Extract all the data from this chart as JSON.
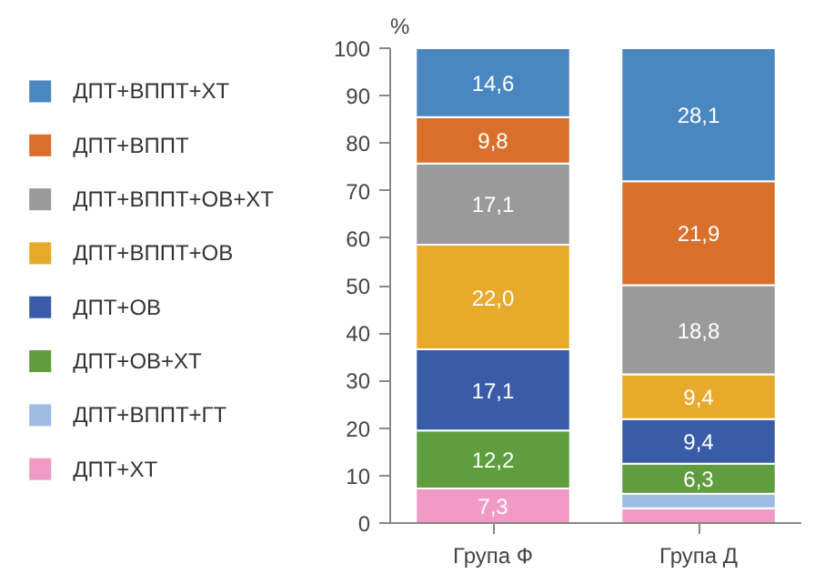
{
  "chart_data": {
    "type": "bar",
    "stacked": true,
    "ylabel": "%",
    "categories": [
      "Група Ф",
      "Група Д"
    ],
    "ylim": [
      0,
      100
    ],
    "yticks": [
      0,
      10,
      20,
      30,
      40,
      50,
      60,
      70,
      80,
      90,
      100
    ],
    "grid": false,
    "legend": "left",
    "series": [
      {
        "name": "ДПТ+ХТ",
        "color": "#f29ac6",
        "values": [
          7.3,
          3.1
        ],
        "value_labels": [
          "7,3",
          null
        ]
      },
      {
        "name": "ДПТ+ВППТ+ГТ",
        "color": "#9dbbe3",
        "values": [
          0,
          3.1
        ],
        "value_labels": [
          null,
          null
        ]
      },
      {
        "name": "ДПТ+ОВ+ХТ",
        "color": "#5f9d3f",
        "values": [
          12.2,
          6.3
        ],
        "value_labels": [
          "12,2",
          "6,3"
        ]
      },
      {
        "name": "ДПТ+ОВ",
        "color": "#3a5ca8",
        "values": [
          17.1,
          9.4
        ],
        "value_labels": [
          "17,1",
          "9,4"
        ]
      },
      {
        "name": "ДПТ+ВППТ+ОВ",
        "color": "#e7aa2a",
        "values": [
          22.0,
          9.4
        ],
        "value_labels": [
          "22,0",
          "9,4"
        ]
      },
      {
        "name": "ДПТ+ВППТ+ОВ+ХТ",
        "color": "#9a9a9a",
        "values": [
          17.1,
          18.8
        ],
        "value_labels": [
          "17,1",
          "18,8"
        ]
      },
      {
        "name": "ДПТ+ВППТ",
        "color": "#d8702c",
        "values": [
          9.8,
          21.9
        ],
        "value_labels": [
          "9,8",
          "21,9"
        ]
      },
      {
        "name": "ДПТ+ВППТ+ХТ",
        "color": "#4a87c0",
        "values": [
          14.6,
          28.1
        ],
        "value_labels": [
          "14,6",
          "28,1"
        ]
      }
    ]
  }
}
